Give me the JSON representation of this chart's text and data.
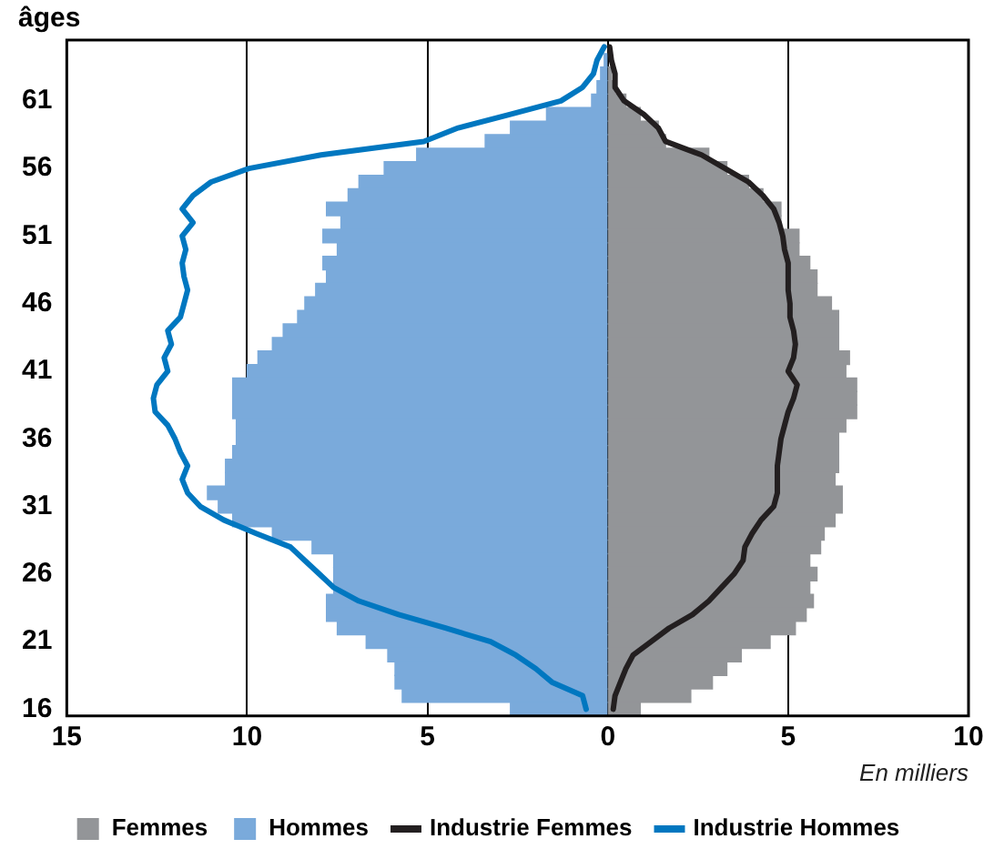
{
  "chart_data": {
    "type": "bar",
    "orientation": "horizontal",
    "stacked": true,
    "ylabel": "âges",
    "xlabel": "En milliers",
    "categories": [
      null,
      null,
      null,
      null,
      "61",
      null,
      null,
      null,
      null,
      "56",
      null,
      null,
      null,
      null,
      "51",
      null,
      null,
      null,
      null,
      "46",
      null,
      null,
      null,
      null,
      "41",
      null,
      null,
      null,
      null,
      "36",
      null,
      null,
      null,
      null,
      "31",
      null,
      null,
      null,
      null,
      "26",
      null,
      null,
      null,
      null,
      "21",
      null,
      null,
      null,
      null,
      "16"
    ],
    "xlim": [
      -15,
      10
    ],
    "xticks": [
      {
        "value": -15,
        "label": "15"
      },
      {
        "value": -10,
        "label": "10"
      },
      {
        "value": -5,
        "label": "5"
      },
      0,
      5,
      10
    ],
    "grid": "x",
    "legend": "bottom",
    "marker": "none",
    "line_style": "solid",
    "series": [
      {
        "name": "Femmes",
        "color": "#939598",
        "values": [
          null,
          null,
          0.1,
          0.2,
          0.5,
          0.9,
          1.4,
          1.6,
          2.8,
          3.3,
          3.9,
          4.3,
          4.8,
          4.8,
          5.3,
          5.3,
          5.6,
          5.8,
          5.8,
          6.2,
          6.4,
          6.4,
          6.4,
          6.7,
          6.6,
          6.9,
          6.9,
          6.9,
          6.6,
          6.4,
          6.4,
          6.4,
          6.3,
          6.5,
          6.5,
          6.3,
          6.0,
          5.9,
          5.6,
          5.8,
          5.6,
          5.7,
          5.5,
          5.2,
          4.5,
          3.7,
          3.3,
          2.9,
          2.3,
          0.9
        ]
      },
      {
        "name": "Hommes",
        "color": "#7aaadb",
        "values": [
          null,
          -0.1,
          -0.2,
          -0.3,
          -0.45,
          -1.7,
          -2.7,
          -3.4,
          -5.3,
          -6.2,
          -6.9,
          -7.2,
          -7.8,
          -7.4,
          -7.9,
          -7.5,
          -7.9,
          -7.8,
          -8.1,
          -8.4,
          -8.6,
          -9.0,
          -9.3,
          -9.7,
          -10.0,
          -10.4,
          -10.4,
          -10.4,
          -10.3,
          -10.3,
          -10.4,
          -10.6,
          -10.6,
          -11.1,
          -10.8,
          -10.4,
          -9.3,
          -8.2,
          -7.6,
          -7.6,
          -7.6,
          -7.8,
          -7.8,
          -7.5,
          -6.7,
          -6.1,
          -5.9,
          -5.9,
          -5.7,
          -2.7
        ]
      },
      {
        "name": "Industrie Femmes",
        "type": "line",
        "color": "#231f20",
        "values": [
          0.05,
          0.1,
          0.2,
          0.2,
          0.45,
          1.0,
          1.4,
          1.6,
          2.6,
          3.25,
          3.9,
          4.3,
          4.6,
          4.75,
          4.85,
          4.9,
          5.0,
          5.0,
          5.0,
          5.05,
          5.05,
          5.15,
          5.2,
          5.15,
          5.0,
          5.25,
          5.15,
          5.0,
          4.9,
          4.8,
          4.75,
          4.7,
          4.7,
          4.7,
          4.6,
          4.25,
          4.0,
          3.8,
          3.75,
          3.5,
          3.15,
          2.8,
          2.35,
          1.7,
          1.2,
          0.7,
          0.5,
          0.35,
          0.2,
          0.15
        ]
      },
      {
        "name": "Industrie Hommes",
        "type": "line",
        "color": "#0077c0",
        "values": [
          -0.1,
          -0.3,
          -0.4,
          -0.7,
          -1.3,
          -2.7,
          -4.15,
          -5.1,
          -7.95,
          -9.95,
          -11.0,
          -11.5,
          -11.8,
          -11.5,
          -11.8,
          -11.7,
          -11.8,
          -11.75,
          -11.65,
          -11.75,
          -11.85,
          -12.2,
          -12.1,
          -12.3,
          -12.2,
          -12.5,
          -12.6,
          -12.55,
          -12.2,
          -12.0,
          -11.85,
          -11.65,
          -11.8,
          -11.65,
          -11.3,
          -10.65,
          -9.75,
          -8.8,
          -8.4,
          -8.0,
          -7.6,
          -6.9,
          -5.8,
          -4.5,
          -3.25,
          -2.55,
          -2.0,
          -1.55,
          -0.7,
          -0.6
        ]
      }
    ]
  }
}
